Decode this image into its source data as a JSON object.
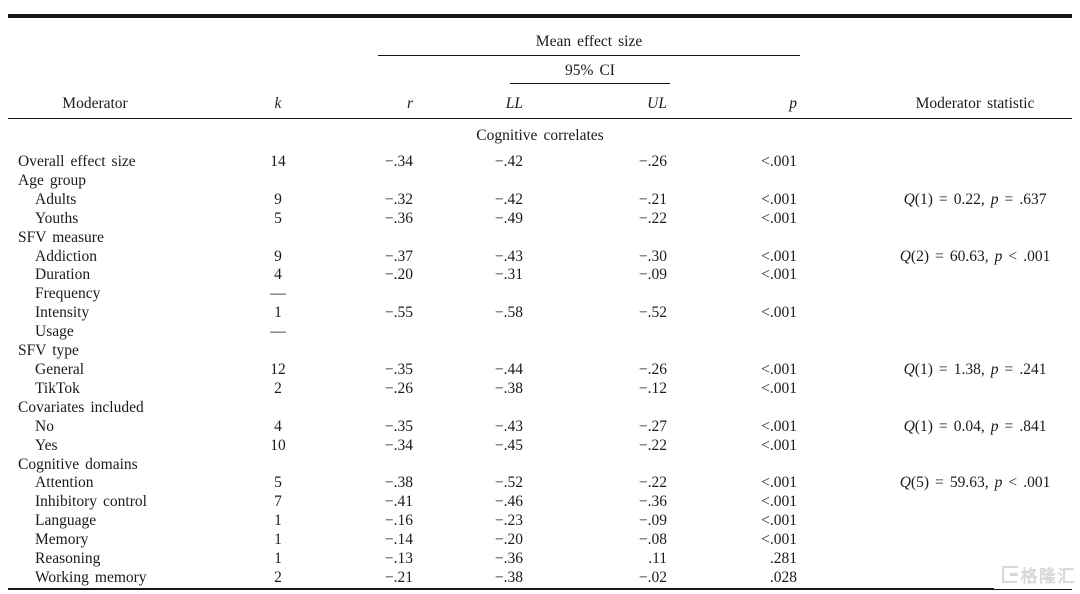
{
  "document": {
    "background": "#ffffff",
    "text_color": "#1b1b1b",
    "rule_color": "#161616"
  },
  "table": {
    "group_header": "Mean effect size",
    "ci_header": "95% CI",
    "columns": [
      {
        "id": "moderator",
        "label": "Moderator"
      },
      {
        "id": "k",
        "label": "k"
      },
      {
        "id": "r",
        "label": "r"
      },
      {
        "id": "ll",
        "label": "LL"
      },
      {
        "id": "ul",
        "label": "UL"
      },
      {
        "id": "p",
        "label": "p"
      },
      {
        "id": "stat",
        "label": "Moderator statistic"
      }
    ],
    "section_label": "Cognitive correlates",
    "rows": [
      {
        "moderator": "Overall effect size",
        "indent": 0,
        "k": "14",
        "r": "−.34",
        "ll": "−.42",
        "ul": "−.26",
        "p": "<.001",
        "stat": []
      },
      {
        "moderator": "Age group",
        "indent": 0,
        "k": "",
        "r": "",
        "ll": "",
        "ul": "",
        "p": "",
        "stat": []
      },
      {
        "moderator": "Adults",
        "indent": 1,
        "k": "9",
        "r": "−.32",
        "ll": "−.42",
        "ul": "−.21",
        "p": "<.001",
        "stat": [
          {
            "t": "Q",
            "i": true
          },
          {
            "t": "(1) = 0.22, ",
            "i": false
          },
          {
            "t": "p",
            "i": true
          },
          {
            "t": " = .637",
            "i": false
          }
        ]
      },
      {
        "moderator": "Youths",
        "indent": 1,
        "k": "5",
        "r": "−.36",
        "ll": "−.49",
        "ul": "−.22",
        "p": "<.001",
        "stat": []
      },
      {
        "moderator": "SFV measure",
        "indent": 0,
        "k": "",
        "r": "",
        "ll": "",
        "ul": "",
        "p": "",
        "stat": []
      },
      {
        "moderator": "Addiction",
        "indent": 1,
        "k": "9",
        "r": "−.37",
        "ll": "−.43",
        "ul": "−.30",
        "p": "<.001",
        "stat": [
          {
            "t": "Q",
            "i": true
          },
          {
            "t": "(2) = 60.63, ",
            "i": false
          },
          {
            "t": "p",
            "i": true
          },
          {
            "t": " < .001",
            "i": false
          }
        ]
      },
      {
        "moderator": "Duration",
        "indent": 1,
        "k": "4",
        "r": "−.20",
        "ll": "−.31",
        "ul": "−.09",
        "p": "<.001",
        "stat": []
      },
      {
        "moderator": "Frequency",
        "indent": 1,
        "k": "—",
        "r": "",
        "ll": "",
        "ul": "",
        "p": "",
        "stat": []
      },
      {
        "moderator": "Intensity",
        "indent": 1,
        "k": "1",
        "r": "−.55",
        "ll": "−.58",
        "ul": "−.52",
        "p": "<.001",
        "stat": []
      },
      {
        "moderator": "Usage",
        "indent": 1,
        "k": "—",
        "r": "",
        "ll": "",
        "ul": "",
        "p": "",
        "stat": []
      },
      {
        "moderator": "SFV type",
        "indent": 0,
        "k": "",
        "r": "",
        "ll": "",
        "ul": "",
        "p": "",
        "stat": []
      },
      {
        "moderator": "General",
        "indent": 1,
        "k": "12",
        "r": "−.35",
        "ll": "−.44",
        "ul": "−.26",
        "p": "<.001",
        "stat": [
          {
            "t": "Q",
            "i": true
          },
          {
            "t": "(1) = 1.38, ",
            "i": false
          },
          {
            "t": "p",
            "i": true
          },
          {
            "t": " = .241",
            "i": false
          }
        ]
      },
      {
        "moderator": "TikTok",
        "indent": 1,
        "k": "2",
        "r": "−.26",
        "ll": "−.38",
        "ul": "−.12",
        "p": "<.001",
        "stat": []
      },
      {
        "moderator": "Covariates included",
        "indent": 0,
        "k": "",
        "r": "",
        "ll": "",
        "ul": "",
        "p": "",
        "stat": []
      },
      {
        "moderator": "No",
        "indent": 1,
        "k": "4",
        "r": "−.35",
        "ll": "−.43",
        "ul": "−.27",
        "p": "<.001",
        "stat": [
          {
            "t": "Q",
            "i": true
          },
          {
            "t": "(1) = 0.04, ",
            "i": false
          },
          {
            "t": "p",
            "i": true
          },
          {
            "t": " = .841",
            "i": false
          }
        ]
      },
      {
        "moderator": "Yes",
        "indent": 1,
        "k": "10",
        "r": "−.34",
        "ll": "−.45",
        "ul": "−.22",
        "p": "<.001",
        "stat": []
      },
      {
        "moderator": "Cognitive domains",
        "indent": 0,
        "k": "",
        "r": "",
        "ll": "",
        "ul": "",
        "p": "",
        "stat": []
      },
      {
        "moderator": "Attention",
        "indent": 1,
        "k": "5",
        "r": "−.38",
        "ll": "−.52",
        "ul": "−.22",
        "p": "<.001",
        "stat": [
          {
            "t": "Q",
            "i": true
          },
          {
            "t": "(5) = 59.63, ",
            "i": false
          },
          {
            "t": "p",
            "i": true
          },
          {
            "t": " < .001",
            "i": false
          }
        ]
      },
      {
        "moderator": "Inhibitory control",
        "indent": 1,
        "k": "7",
        "r": "−.41",
        "ll": "−.46",
        "ul": "−.36",
        "p": "<.001",
        "stat": []
      },
      {
        "moderator": "Language",
        "indent": 1,
        "k": "1",
        "r": "−.16",
        "ll": "−.23",
        "ul": "−.09",
        "p": "<.001",
        "stat": []
      },
      {
        "moderator": "Memory",
        "indent": 1,
        "k": "1",
        "r": "−.14",
        "ll": "−.20",
        "ul": "−.08",
        "p": "<.001",
        "stat": []
      },
      {
        "moderator": "Reasoning",
        "indent": 1,
        "k": "1",
        "r": "−.13",
        "ll": "−.36",
        "ul": ".11",
        "p": ".281",
        "stat": []
      },
      {
        "moderator": "Working memory",
        "indent": 1,
        "k": "2",
        "r": "−.21",
        "ll": "−.38",
        "ul": "−.02",
        "p": ".028",
        "stat": []
      }
    ]
  },
  "watermark": {
    "logo": "gelonghui-logo",
    "text": "格隆汇",
    "color": "#d8d8d8"
  }
}
